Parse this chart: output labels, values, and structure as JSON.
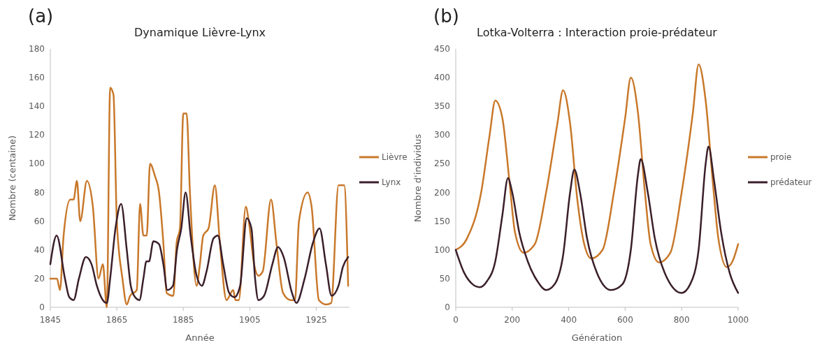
{
  "chart_data": [
    {
      "type": "line",
      "title": "Dynamique Lièvre-Lynx",
      "xlabel": "Année",
      "ylabel": "Nombre  (centaine)",
      "annotations": [
        "(a)"
      ],
      "xlim": [
        1845,
        1935
      ],
      "xticks": [
        1845,
        1865,
        1885,
        1905,
        1925
      ],
      "ylim": [
        0,
        180
      ],
      "yticks": [
        0,
        20,
        40,
        60,
        80,
        100,
        120,
        140,
        160,
        180
      ],
      "grid": false,
      "legend": "right",
      "series": [
        {
          "name": "Lièvre",
          "color": "#c8782a",
          "x": [
            1845,
            1846,
            1847,
            1847.9,
            1849,
            1851,
            1852,
            1853,
            1854,
            1856,
            1857.8,
            1859.5,
            1860.8,
            1862,
            1863,
            1864,
            1865,
            1866.7,
            1868,
            1869,
            1871,
            1872,
            1873,
            1874,
            1875,
            1876.4,
            1877.7,
            1879,
            1880,
            1882,
            1883,
            1884,
            1885,
            1886,
            1887,
            1889,
            1890,
            1891,
            1892.6,
            1894.5,
            1896,
            1898,
            1900,
            1900.7,
            1901.7,
            1903.8,
            1904.7,
            1906.3,
            1907.6,
            1908.9,
            1911.4,
            1913,
            1915,
            1917.3,
            1918.6,
            1919.8,
            1922.4,
            1923.6,
            1925.8,
            1927.9,
            1929.5,
            1931.7,
            1933.4,
            1934.6
          ],
          "values": [
            20,
            20,
            20,
            12,
            50,
            75,
            75,
            88,
            60,
            88,
            70,
            20,
            30,
            0,
            153,
            148,
            60,
            20,
            2,
            8,
            12,
            72,
            50,
            50,
            100,
            92,
            80,
            45,
            10,
            8,
            45,
            55,
            135,
            135,
            80,
            15,
            30,
            50,
            55,
            85,
            45,
            5,
            12,
            5,
            5,
            70,
            60,
            30,
            22,
            25,
            75,
            45,
            10,
            5,
            5,
            60,
            80,
            70,
            5,
            2,
            3,
            85,
            85,
            15
          ]
        },
        {
          "name": "Lynx",
          "color": "#3a1f2b",
          "x": [
            1845,
            1846.9,
            1849.4,
            1850.7,
            1852,
            1853.6,
            1855.7,
            1857.4,
            1859,
            1860.8,
            1862,
            1863,
            1864.6,
            1866.3,
            1868,
            1869.2,
            1870.5,
            1871.8,
            1873,
            1873.9,
            1874.7,
            1876,
            1877.7,
            1879,
            1880.2,
            1881.9,
            1883.1,
            1884.4,
            1885.7,
            1887.2,
            1889,
            1890.6,
            1892,
            1894.1,
            1895.4,
            1897,
            1898.8,
            1900.4,
            1902.1,
            1904.1,
            1905.5,
            1906.6,
            1907.6,
            1909.3,
            1911.8,
            1913.5,
            1915.2,
            1917.7,
            1919,
            1921.5,
            1924,
            1926,
            1927.9,
            1929.6,
            1931.7,
            1933,
            1934.6
          ],
          "values": [
            30,
            50,
            20,
            7,
            5,
            20,
            35,
            30,
            15,
            5,
            3,
            20,
            55,
            72,
            40,
            15,
            7,
            5,
            20,
            32,
            32,
            46,
            44,
            30,
            12,
            15,
            40,
            55,
            80,
            50,
            22,
            15,
            25,
            48,
            50,
            30,
            10,
            7,
            15,
            62,
            55,
            20,
            5,
            8,
            30,
            42,
            35,
            10,
            3,
            20,
            45,
            55,
            30,
            8,
            15,
            28,
            35
          ]
        }
      ]
    },
    {
      "type": "line",
      "title": "Lotka-Volterra  : Interaction proie-prédateur",
      "xlabel": "Génération",
      "ylabel": "Nombre d'individus",
      "annotations": [
        "(b)"
      ],
      "xlim": [
        0,
        1000
      ],
      "xticks": [
        0,
        200,
        400,
        600,
        800,
        1000
      ],
      "ylim": [
        0,
        450
      ],
      "yticks": [
        0,
        50,
        100,
        150,
        200,
        250,
        300,
        350,
        400,
        450
      ],
      "grid": false,
      "legend": "right",
      "series": [
        {
          "name": "proie",
          "color": "#c8782a",
          "x": [
            0,
            40,
            90,
            120,
            140,
            165,
            190,
            210,
            240,
            280,
            320,
            360,
            380,
            405,
            430,
            455,
            480,
            520,
            560,
            600,
            620,
            645,
            670,
            690,
            720,
            760,
            800,
            840,
            860,
            885,
            910,
            930,
            960,
            980,
            1000
          ],
          "values": [
            100,
            120,
            200,
            300,
            360,
            330,
            220,
            130,
            95,
            110,
            200,
            320,
            378,
            320,
            190,
            110,
            85,
            100,
            200,
            330,
            400,
            340,
            200,
            110,
            78,
            95,
            200,
            340,
            423,
            360,
            220,
            120,
            70,
            80,
            110
          ]
        },
        {
          "name": "prédateur",
          "color": "#3a1f2b",
          "x": [
            0,
            30,
            60,
            85,
            110,
            140,
            165,
            185,
            200,
            225,
            255,
            290,
            320,
            350,
            380,
            405,
            420,
            440,
            465,
            500,
            550,
            590,
            620,
            645,
            655,
            680,
            705,
            740,
            800,
            830,
            860,
            885,
            895,
            915,
            940,
            970,
            1000
          ],
          "values": [
            100,
            60,
            40,
            35,
            45,
            80,
            160,
            225,
            200,
            130,
            80,
            45,
            30,
            40,
            90,
            200,
            240,
            200,
            120,
            60,
            30,
            40,
            100,
            230,
            258,
            200,
            120,
            60,
            25,
            40,
            100,
            250,
            280,
            220,
            130,
            60,
            25
          ]
        }
      ]
    }
  ]
}
